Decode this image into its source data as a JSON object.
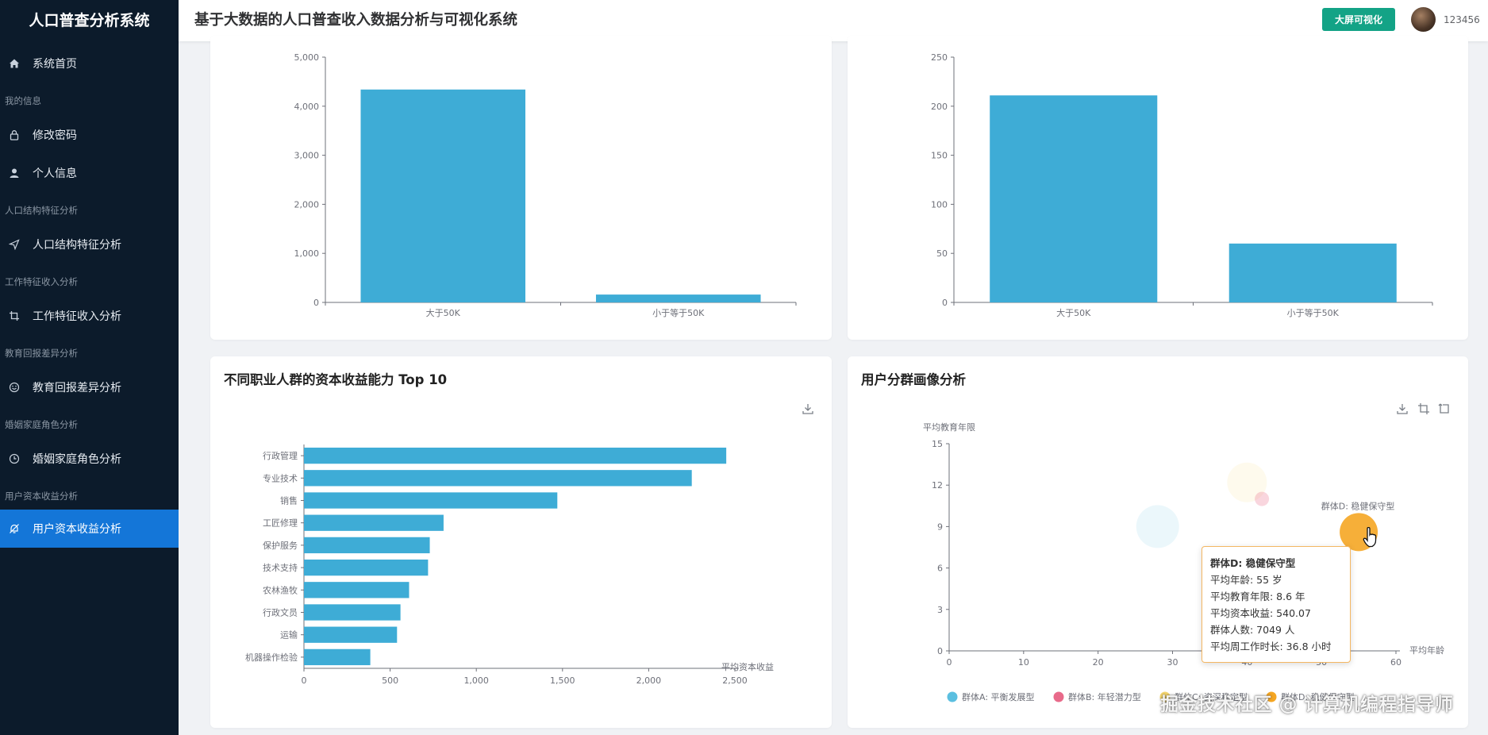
{
  "app": {
    "brand": "人口普查分析系统",
    "header_title": "基于大数据的人口普查收入数据分析与可视化系统",
    "big_screen_button": "大屏可视化",
    "username": "123456"
  },
  "sidebar": {
    "home": "系统首页",
    "groups": [
      "我的信息",
      "人口结构特征分析",
      "工作特征收入分析",
      "教育回报差异分析",
      "婚姻家庭角色分析",
      "用户资本收益分析"
    ],
    "items": {
      "change_password": "修改密码",
      "profile": "个人信息",
      "population": "人口结构特征分析",
      "work": "工作特征收入分析",
      "education": "教育回报差异分析",
      "marriage": "婚姻家庭角色分析",
      "capital": "用户资本收益分析"
    }
  },
  "icons": [
    "home-icon",
    "lock-icon",
    "user-icon",
    "send-icon",
    "crop-icon",
    "smile-icon",
    "clock-icon",
    "bell-off-icon",
    "download-icon"
  ],
  "colors": {
    "bar": "#3eacd6",
    "active": "#1476d8",
    "sidebar_bg": "#0c1b2b",
    "button": "#13a386"
  },
  "chart_data": [
    {
      "type": "bar",
      "categories": [
        "大于50K",
        "小于等于50K"
      ],
      "values": [
        4340,
        160
      ],
      "ylim": [
        0,
        5000
      ],
      "yticks": [
        "0",
        "1,000",
        "2,000",
        "3,000",
        "4,000",
        "5,000"
      ]
    },
    {
      "type": "bar",
      "categories": [
        "大于50K",
        "小于等于50K"
      ],
      "values": [
        211,
        60
      ],
      "ylim": [
        0,
        250
      ],
      "yticks": [
        "0",
        "50",
        "100",
        "150",
        "200",
        "250"
      ]
    },
    {
      "type": "bar",
      "orientation": "horizontal",
      "title": "不同职业人群的资本收益能力 Top 10",
      "categories": [
        "行政管理",
        "专业技术",
        "销售",
        "工匠修理",
        "保护服务",
        "技术支持",
        "农林渔牧",
        "行政文员",
        "运输",
        "机器操作检验"
      ],
      "values": [
        2450,
        2250,
        1470,
        810,
        730,
        720,
        610,
        560,
        540,
        385
      ],
      "xlim": [
        0,
        2500
      ],
      "xticks": [
        "0",
        "500",
        "1,000",
        "1,500",
        "2,000",
        "2,500"
      ],
      "xlabel": "平均资本收益"
    },
    {
      "type": "scatter",
      "title": "用户分群画像分析",
      "xlabel": "平均年龄",
      "ylabel": "平均教育年限",
      "xlim": [
        0,
        60
      ],
      "ylim": [
        0,
        15
      ],
      "xticks": [
        "0",
        "10",
        "20",
        "30",
        "40",
        "50",
        "60"
      ],
      "yticks": [
        "0",
        "3",
        "6",
        "9",
        "12",
        "15"
      ],
      "series": [
        {
          "name": "群体A: 平衡发展型",
          "x": 28,
          "y": 9.0,
          "color": "#5bbfe0"
        },
        {
          "name": "群体B: 年轻潜力型",
          "x": 42,
          "y": 11.0,
          "color": "#e86a8a"
        },
        {
          "name": "群体C: 资深稳定型",
          "x": 40,
          "y": 12.2,
          "color": "#f5d66e"
        },
        {
          "name": "群体D: 稳健保守型",
          "x": 55,
          "y": 8.6,
          "color": "#f5a623"
        }
      ],
      "highlight_label": "群体D: 稳健保守型",
      "tooltip": {
        "title": "群体D: 稳健保守型",
        "lines": [
          "平均年龄: 55 岁",
          "平均教育年限: 8.6 年",
          "平均资本收益: 540.07",
          "群体人数: 7049 人",
          "平均周工作时长: 36.8 小时"
        ]
      }
    }
  ],
  "watermark": "掘金技术社区 @ 计算机编程指导师"
}
